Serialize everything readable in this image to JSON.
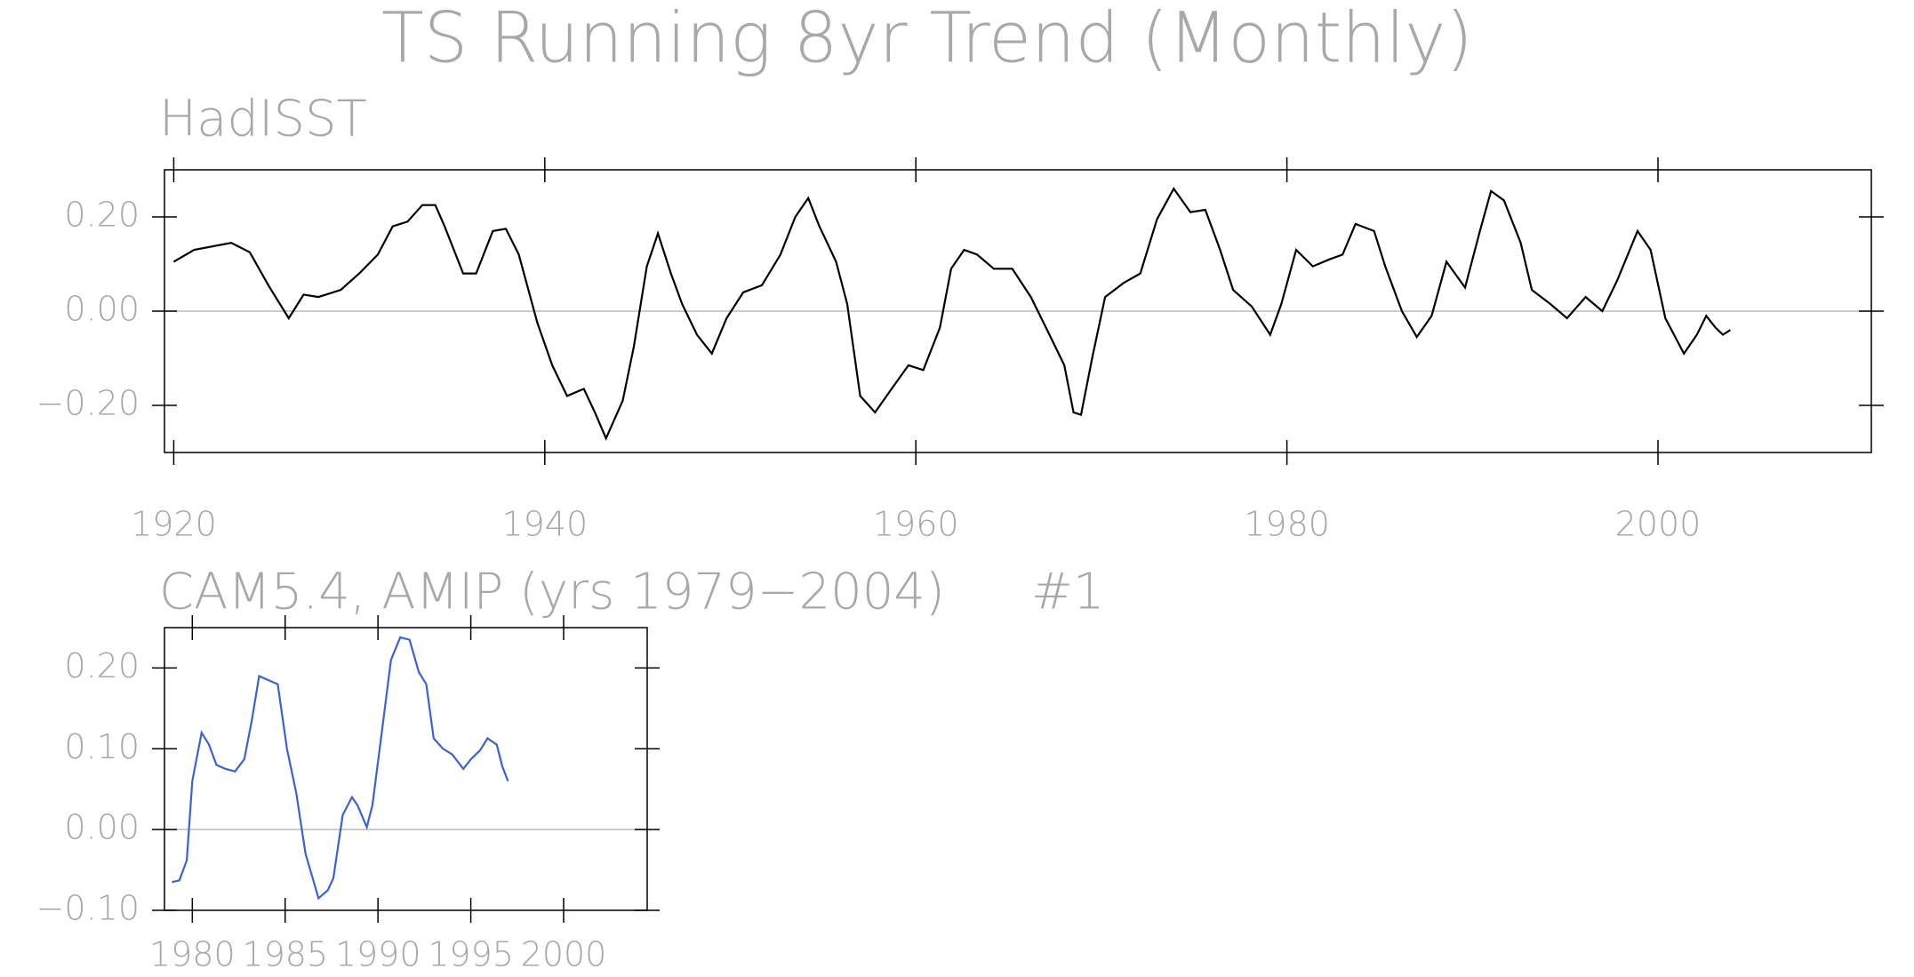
{
  "title": "TS Running 8yr Trend (Monthly)",
  "chart_data": [
    {
      "type": "line",
      "subtitle": "HadISST",
      "xlim": [
        1919.5,
        2011.5
      ],
      "xticks": [
        1920,
        1940,
        1960,
        1980,
        2000
      ],
      "ylim": [
        -0.3,
        0.3
      ],
      "yticks": [
        {
          "value": -0.2,
          "label": "−0.20"
        },
        {
          "value": 0,
          "label": "0.00"
        },
        {
          "value": 0.2,
          "label": "0.20"
        }
      ],
      "refline": 0,
      "series": [
        {
          "color": "#000000",
          "x": [
            1920,
            1921.1,
            1923.1,
            1924.1,
            1925.1,
            1926.2,
            1927,
            1927.8,
            1929,
            1930,
            1931,
            1931.8,
            1932.6,
            1933.4,
            1934.1,
            1934.6,
            1935.6,
            1936.3,
            1937.2,
            1937.9,
            1938.6,
            1939.6,
            1940.4,
            1941.2,
            1942.1,
            1942.7,
            1943.3,
            1944.2,
            1944.8,
            1945.5,
            1946.1,
            1946.8,
            1947.4,
            1948.2,
            1949,
            1949.8,
            1950.7,
            1951.7,
            1952.7,
            1953.5,
            1954.2,
            1954.8,
            1955.7,
            1956.3,
            1957,
            1957.8,
            1958.6,
            1959.6,
            1960.4,
            1961.3,
            1961.9,
            1962.6,
            1963.3,
            1964.2,
            1965.2,
            1966.2,
            1967.2,
            1968,
            1968.5,
            1968.9,
            1969.5,
            1970.2,
            1971.2,
            1972.1,
            1973,
            1973.9,
            1974.8,
            1975.6,
            1976.4,
            1977.1,
            1978.1,
            1979.1,
            1979.7,
            1980.5,
            1981.4,
            1982.3,
            1983,
            1983.7,
            1984.7,
            1985.3,
            1986.2,
            1987,
            1987.8,
            1988.6,
            1989.6,
            1990.4,
            1991,
            1991.7,
            1992.6,
            1993.2,
            1994.2,
            1995.1,
            1996.1,
            1997,
            1997.8,
            1998.9,
            1999.6,
            2000.4,
            2001.4,
            2002.1,
            2002.6,
            2003.1,
            2003.5,
            2003.9
          ],
          "values": [
            0.105,
            0.13,
            0.145,
            0.125,
            0.055,
            -0.015,
            0.035,
            0.03,
            0.045,
            0.08,
            0.12,
            0.18,
            0.19,
            0.225,
            0.225,
            0.18,
            0.08,
            0.08,
            0.17,
            0.175,
            0.12,
            -0.025,
            -0.115,
            -0.18,
            -0.165,
            -0.215,
            -0.27,
            -0.19,
            -0.075,
            0.095,
            0.165,
            0.08,
            0.015,
            -0.05,
            -0.09,
            -0.015,
            0.04,
            0.055,
            0.12,
            0.2,
            0.24,
            0.18,
            0.105,
            0.015,
            -0.18,
            -0.215,
            -0.17,
            -0.115,
            -0.125,
            -0.035,
            0.09,
            0.13,
            0.12,
            0.09,
            0.09,
            0.03,
            -0.05,
            -0.115,
            -0.215,
            -0.22,
            -0.1,
            0.03,
            0.06,
            0.08,
            0.195,
            0.26,
            0.21,
            0.215,
            0.13,
            0.045,
            0.01,
            -0.05,
            0.015,
            0.13,
            0.095,
            0.11,
            0.12,
            0.185,
            0.17,
            0.095,
            0.0,
            -0.055,
            -0.01,
            0.105,
            0.05,
            0.17,
            0.255,
            0.235,
            0.145,
            0.045,
            0.015,
            -0.015,
            0.03,
            0.0,
            0.065,
            0.17,
            0.13,
            -0.015,
            -0.09,
            -0.05,
            -0.01,
            -0.035,
            -0.05,
            -0.04
          ]
        }
      ]
    },
    {
      "type": "line",
      "subtitle": "CAM5.4, AMIP (yrs 1979−2004)",
      "note": "#1",
      "xlim": [
        1978.5,
        2004.5
      ],
      "xticks": [
        1980,
        1985,
        1990,
        1995,
        2000
      ],
      "ylim": [
        -0.1,
        0.25
      ],
      "yticks": [
        {
          "value": -0.1,
          "label": "−0.10"
        },
        {
          "value": 0,
          "label": "0.00"
        },
        {
          "value": 0.1,
          "label": "0.10"
        },
        {
          "value": 0.2,
          "label": "0.20"
        }
      ],
      "refline": 0,
      "series": [
        {
          "color": "#3a62d6",
          "x": [
            1978.9,
            1979.3,
            1979.7,
            1980,
            1980.5,
            1980.9,
            1981.3,
            1981.8,
            1982.3,
            1982.8,
            1983.2,
            1983.6,
            1984.1,
            1984.6,
            1985.1,
            1985.6,
            1986.1,
            1986.8,
            1987.3,
            1987.6,
            1988.1,
            1988.6,
            1988.9,
            1989.4,
            1989.7,
            1990.2,
            1990.7,
            1991.2,
            1991.7,
            1992.2,
            1992.6,
            1993,
            1993.5,
            1994,
            1994.6,
            1995,
            1995.5,
            1995.9,
            1996.4,
            1996.7,
            1997
          ],
          "values": [
            -0.065,
            -0.063,
            -0.038,
            0.06,
            0.12,
            0.105,
            0.08,
            0.075,
            0.072,
            0.087,
            0.135,
            0.19,
            0.185,
            0.18,
            0.1,
            0.045,
            -0.03,
            -0.085,
            -0.075,
            -0.06,
            0.018,
            0.04,
            0.03,
            0.003,
            0.03,
            0.12,
            0.21,
            0.238,
            0.235,
            0.195,
            0.18,
            0.113,
            0.1,
            0.093,
            0.075,
            0.087,
            0.098,
            0.113,
            0.105,
            0.078,
            0.06
          ]
        }
      ]
    }
  ]
}
